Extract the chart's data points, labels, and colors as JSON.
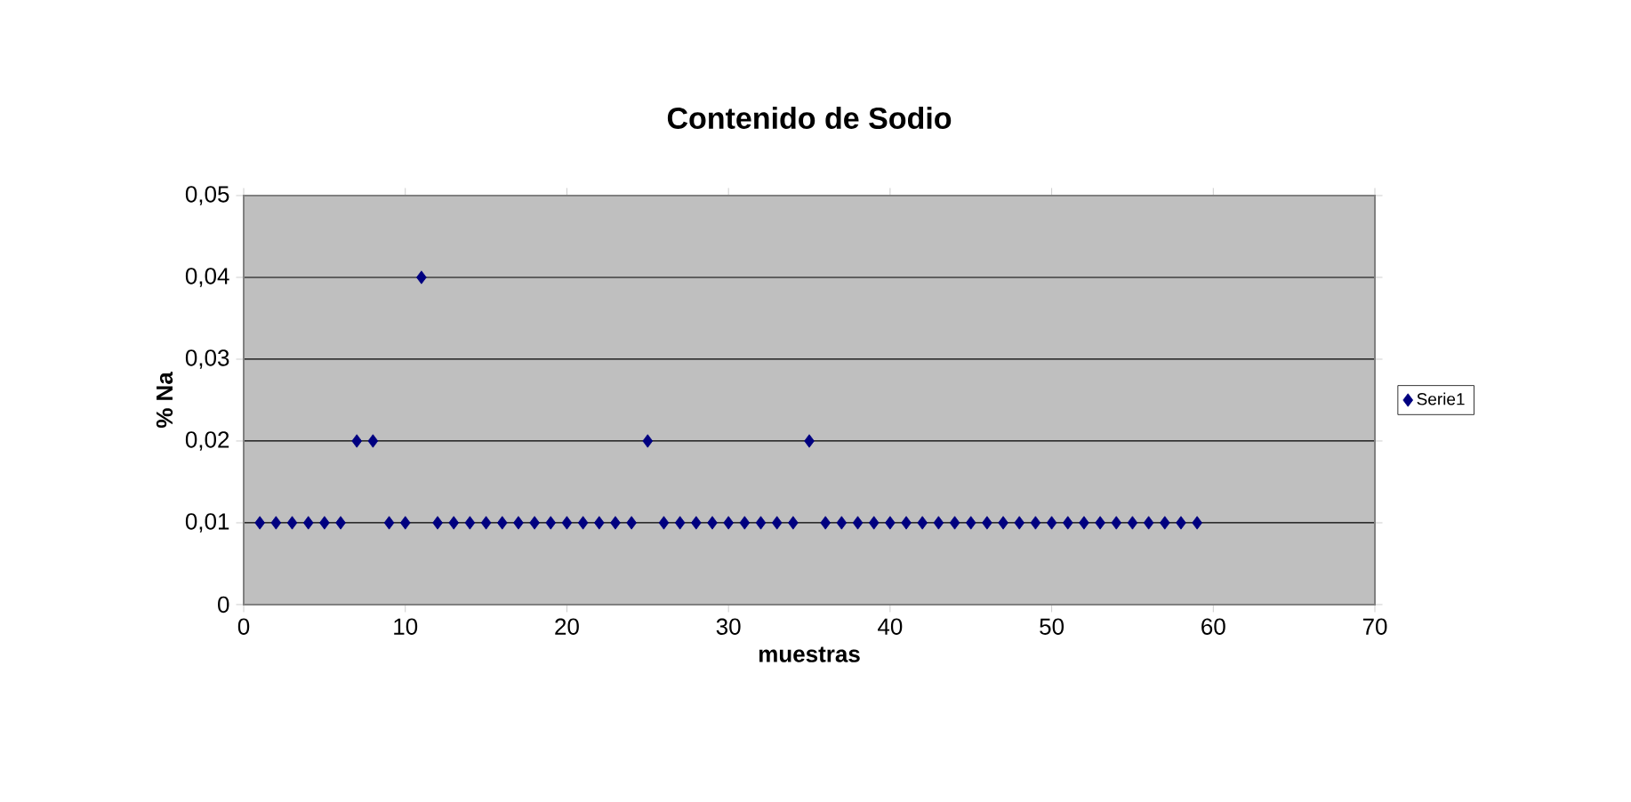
{
  "chart_data": {
    "type": "scatter",
    "title": "Contenido de Sodio",
    "xlabel": "muestras",
    "ylabel": "% Na",
    "x": [
      1,
      2,
      3,
      4,
      5,
      6,
      7,
      8,
      9,
      10,
      11,
      12,
      13,
      14,
      15,
      16,
      17,
      18,
      19,
      20,
      21,
      22,
      23,
      24,
      25,
      26,
      27,
      28,
      29,
      30,
      31,
      32,
      33,
      34,
      35,
      36,
      37,
      38,
      39,
      40,
      41,
      42,
      43,
      44,
      45,
      46,
      47,
      48,
      49,
      50,
      51,
      52,
      53,
      54,
      55,
      56,
      57,
      58,
      59
    ],
    "series": [
      {
        "name": "Serie1",
        "color": "#000080",
        "values": [
          0.01,
          0.01,
          0.01,
          0.01,
          0.01,
          0.01,
          0.02,
          0.02,
          0.01,
          0.01,
          0.04,
          0.01,
          0.01,
          0.01,
          0.01,
          0.01,
          0.01,
          0.01,
          0.01,
          0.01,
          0.01,
          0.01,
          0.01,
          0.01,
          0.02,
          0.01,
          0.01,
          0.01,
          0.01,
          0.01,
          0.01,
          0.01,
          0.01,
          0.01,
          0.02,
          0.01,
          0.01,
          0.01,
          0.01,
          0.01,
          0.01,
          0.01,
          0.01,
          0.01,
          0.01,
          0.01,
          0.01,
          0.01,
          0.01,
          0.01,
          0.01,
          0.01,
          0.01,
          0.01,
          0.01,
          0.01,
          0.01,
          0.01,
          0.01
        ]
      }
    ],
    "xlim": [
      0,
      70
    ],
    "xticks": [
      0,
      10,
      20,
      30,
      40,
      50,
      60,
      70
    ],
    "ylim": [
      0,
      0.05
    ],
    "yticks": [
      0,
      {
        "value": 0.01,
        "label": "0,01"
      },
      {
        "value": 0.02,
        "label": "0,02"
      },
      {
        "value": 0.03,
        "label": "0,03"
      },
      {
        "value": 0.04,
        "label": "0,04"
      },
      {
        "value": 0.05,
        "label": "0,05"
      }
    ],
    "grid": "y",
    "legend": "right",
    "marker": "diamond"
  }
}
